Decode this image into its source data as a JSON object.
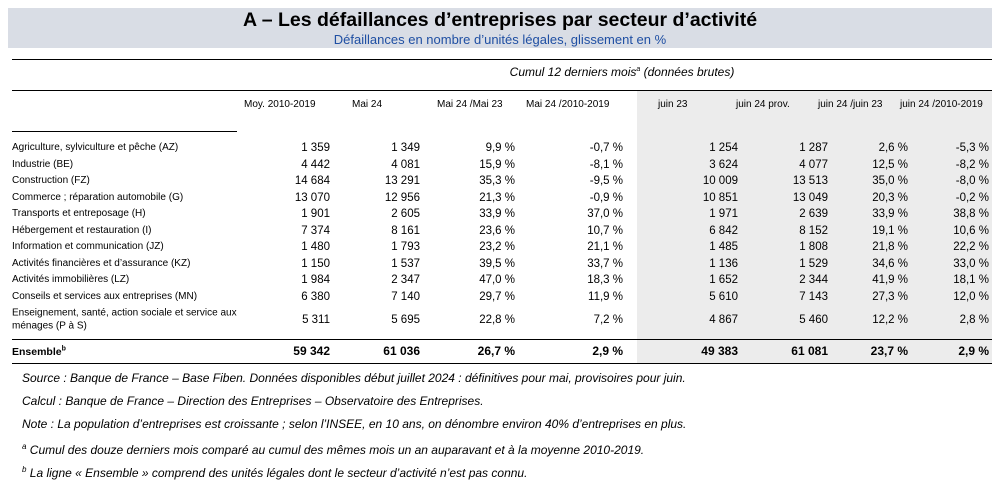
{
  "header": {
    "title": "A – Les défaillances d’entreprises par secteur d’activité",
    "subtitle": "Défaillances en nombre d’unités légales, glissement en %"
  },
  "table": {
    "group_header": "Cumul 12 derniers mois",
    "group_header_sup": "a",
    "group_header_suffix": " (données brutes)",
    "columns": [
      "Moy. 2010-2019",
      "Mai 24",
      "Mai 24 /Mai 23",
      "Mai 24 /2010-2019",
      "juin 23",
      "juin 24 prov.",
      "juin 24 /juin 23",
      "juin 24 /2010-2019"
    ],
    "rows": [
      {
        "label": "Agriculture, sylviculture et pêche (AZ)",
        "values": [
          "1 359",
          "1 349",
          "9,9 %",
          "-0,7 %",
          "1 254",
          "1 287",
          "2,6 %",
          "-5,3 %"
        ]
      },
      {
        "label": "Industrie (BE)",
        "values": [
          "4 442",
          "4 081",
          "15,9 %",
          "-8,1 %",
          "3 624",
          "4 077",
          "12,5 %",
          "-8,2 %"
        ]
      },
      {
        "label": "Construction (FZ)",
        "values": [
          "14 684",
          "13 291",
          "35,3 %",
          "-9,5 %",
          "10 009",
          "13 513",
          "35,0 %",
          "-8,0 %"
        ]
      },
      {
        "label": "Commerce ; réparation automobile (G)",
        "values": [
          "13 070",
          "12 956",
          "21,3 %",
          "-0,9 %",
          "10 851",
          "13 049",
          "20,3 %",
          "-0,2 %"
        ]
      },
      {
        "label": "Transports et entreposage (H)",
        "values": [
          "1 901",
          "2 605",
          "33,9 %",
          "37,0 %",
          "1 971",
          "2 639",
          "33,9 %",
          "38,8 %"
        ]
      },
      {
        "label": "Hébergement et restauration (I)",
        "values": [
          "7 374",
          "8 161",
          "23,6 %",
          "10,7 %",
          "6 842",
          "8 152",
          "19,1 %",
          "10,6 %"
        ]
      },
      {
        "label": "Information et communication (JZ)",
        "values": [
          "1 480",
          "1 793",
          "23,2 %",
          "21,1 %",
          "1 485",
          "1 808",
          "21,8 %",
          "22,2 %"
        ]
      },
      {
        "label": "Activités financières et d’assurance (KZ)",
        "values": [
          "1 150",
          "1 537",
          "39,5 %",
          "33,7 %",
          "1 136",
          "1 529",
          "34,6 %",
          "33,0 %"
        ]
      },
      {
        "label": "Activités immobilières (LZ)",
        "values": [
          "1 984",
          "2 347",
          "47,0 %",
          "18,3 %",
          "1 652",
          "2 344",
          "41,9 %",
          "18,1 %"
        ]
      },
      {
        "label": "Conseils et services aux entreprises (MN)",
        "values": [
          "6 380",
          "7 140",
          "29,7 %",
          "11,9 %",
          "5 610",
          "7 143",
          "27,3 %",
          "12,0 %"
        ]
      },
      {
        "label": "Enseignement, santé, action sociale et service aux ménages (P à S)",
        "values": [
          "5 311",
          "5 695",
          "22,8 %",
          "7,2 %",
          "4 867",
          "5 460",
          "12,2 %",
          "2,8 %"
        ]
      }
    ],
    "total": {
      "label": "Ensemble",
      "label_sup": "b",
      "values": [
        "59 342",
        "61 036",
        "26,7 %",
        "2,9 %",
        "49 383",
        "61 081",
        "23,7 %",
        "2,9 %"
      ]
    }
  },
  "notes": {
    "source": "Source : Banque de France – Base Fiben. Données disponibles début juillet 2024 : définitives pour mai, provisoires pour juin.",
    "calcul": "Calcul : Banque de France – Direction des Entreprises – Observatoire des Entreprises.",
    "note": "Note : La population d’entreprises est croissante ; selon l’INSEE, en 10 ans, on dénombre environ 40% d’entreprises en plus.",
    "footnote_a_mark": "a",
    "footnote_a": " Cumul des douze derniers mois comparé au cumul des mêmes mois un an auparavant et à la moyenne 2010-2019.",
    "footnote_b_mark": "b",
    "footnote_b": " La ligne « Ensemble » comprend des unités légales dont le secteur d’activité n’est pas connu."
  }
}
